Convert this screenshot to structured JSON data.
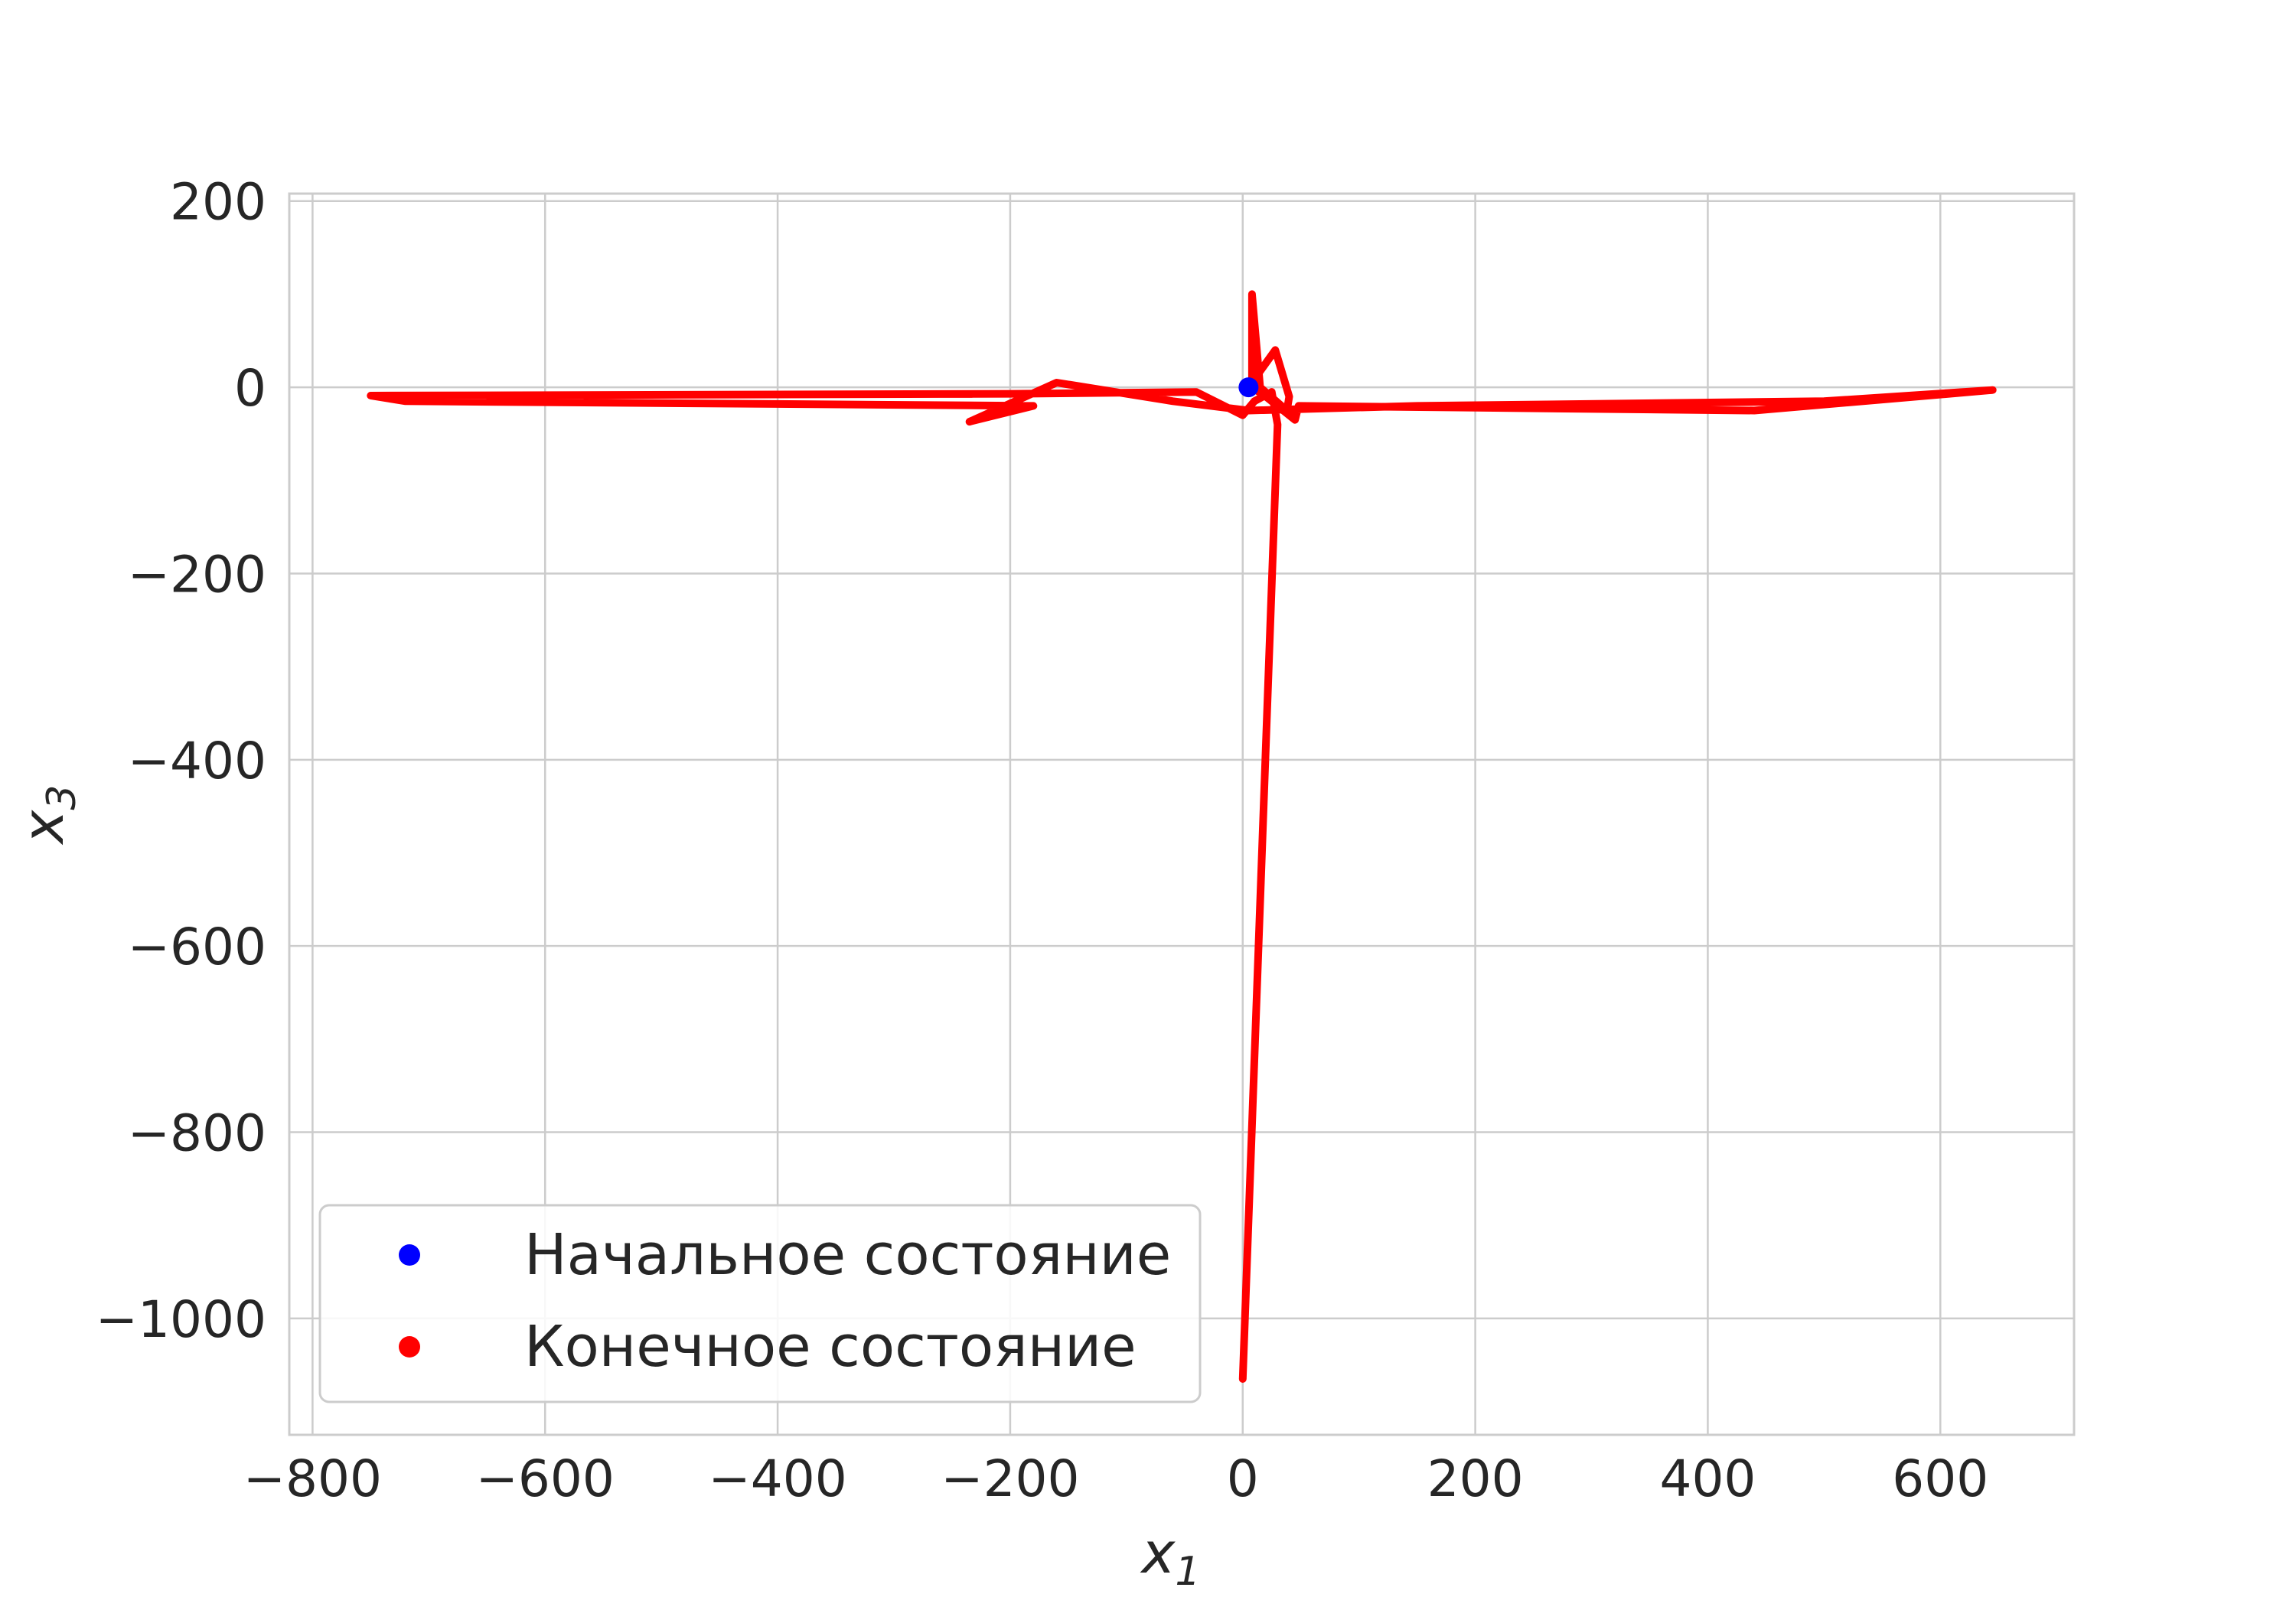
{
  "chart_data": {
    "type": "line",
    "title": "",
    "xlabel": "x",
    "xlabel_sub": "1",
    "ylabel": "x",
    "ylabel_sub": "3",
    "xlim": [
      -820,
      715
    ],
    "ylim": [
      -1125,
      208
    ],
    "xticks": [
      -800,
      -600,
      -400,
      -200,
      0,
      200,
      400,
      600
    ],
    "yticks": [
      200,
      0,
      -200,
      -400,
      -600,
      -800,
      -1000
    ],
    "xtick_labels": [
      "−800",
      "−600",
      "−400",
      "−200",
      "0",
      "200",
      "400",
      "600"
    ],
    "ytick_labels": [
      "200",
      "0",
      "−200",
      "−400",
      "−600",
      "−800",
      "−1000"
    ],
    "grid": true,
    "legend_position": "lower-left",
    "legend": [
      {
        "label": "Начальное состояние",
        "color": "#0000ff"
      },
      {
        "label": "Конечное состояние",
        "color": "#ff0000"
      }
    ],
    "series": [
      {
        "color": "#ff0000",
        "marker": "line",
        "x": [
          5,
          28,
          40,
          38,
          15,
          8,
          8,
          20,
          45,
          48,
          440,
          645,
          500,
          150,
          5,
          -60,
          -160,
          -235,
          -180,
          -720,
          -750,
          -200,
          -40,
          0,
          10,
          25,
          30,
          0
        ],
        "y": [
          0,
          40,
          -10,
          -25,
          0,
          100,
          0,
          -10,
          -35,
          -20,
          -25,
          -3,
          -15,
          -20,
          -25,
          -15,
          5,
          -37,
          -20,
          -15,
          -9,
          -7,
          -5,
          -30,
          -15,
          -5,
          -40,
          -1065
        ]
      }
    ],
    "points": [
      {
        "label": "Начальное состояние",
        "x": 5,
        "y": 0,
        "color": "#0000ff"
      }
    ]
  }
}
